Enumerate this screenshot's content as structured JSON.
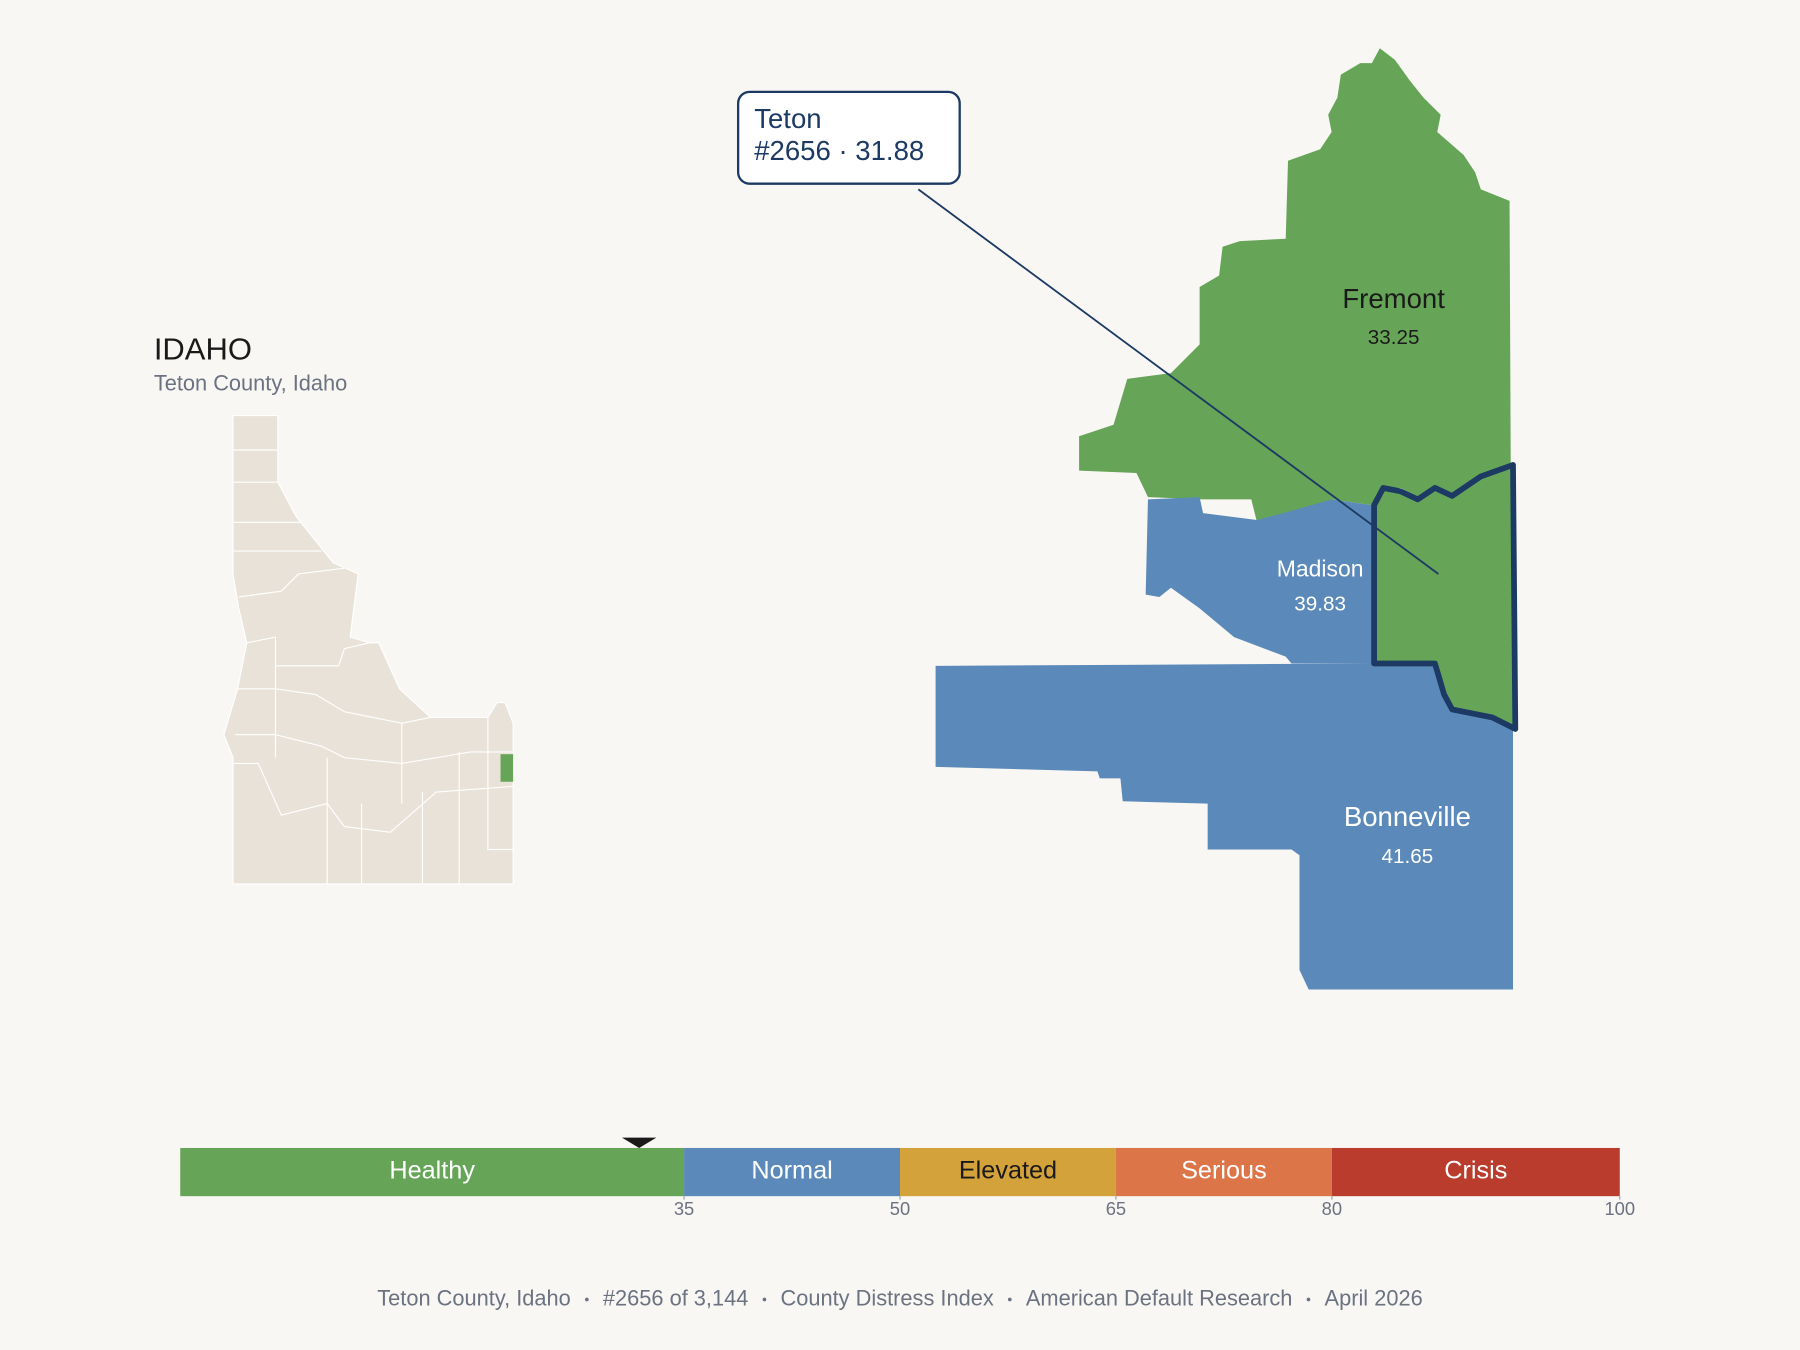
{
  "title": "IDAHO",
  "subtitle": "Teton County, Idaho",
  "counties": [
    {
      "name": "Fremont",
      "value": 33.25,
      "color": "#66a557"
    },
    {
      "name": "Madison",
      "value": 39.83,
      "color": "#5b8aba"
    },
    {
      "name": "Bonneville",
      "value": 41.65,
      "color": "#5b8aba"
    },
    {
      "name": "Teton",
      "value": 31.88,
      "color": "#66a557",
      "callout": "#2656 · 31.88"
    }
  ],
  "scale": {
    "lim": [
      0,
      100
    ],
    "ticks": [
      35,
      50,
      65,
      80,
      100
    ],
    "bands": [
      {
        "name": "Healthy",
        "color": "#66a557"
      },
      {
        "name": "Normal",
        "color": "#5b8aba"
      },
      {
        "name": "Elevated",
        "color": "#d4a23a"
      },
      {
        "name": "Serious",
        "color": "#dc7548"
      },
      {
        "name": "Crisis",
        "color": "#b93c2c"
      }
    ]
  },
  "footer": [
    "Teton County, Idaho",
    "#2656 of 3,144",
    "County Distress Index",
    "American Default Research",
    "April 2026"
  ]
}
